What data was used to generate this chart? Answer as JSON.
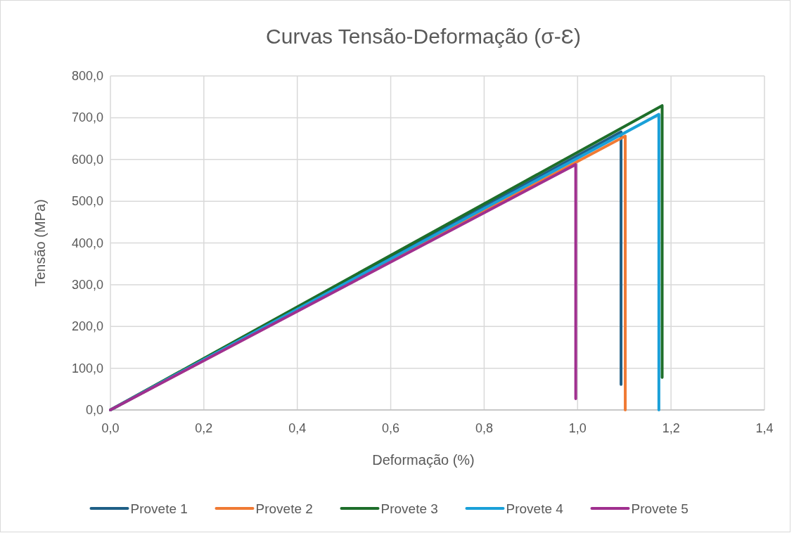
{
  "chart_data": {
    "type": "line",
    "title": "Curvas Tensão-Deformação (σ-Ɛ)",
    "xlabel": "Deformação (%)",
    "ylabel": "Tensão (MPa)",
    "xlim": [
      0,
      1.4
    ],
    "xticks": [
      {
        "value": 0,
        "label": "0,0"
      },
      {
        "value": 0.2,
        "label": "0,2"
      },
      {
        "value": 0.4,
        "label": "0,4"
      },
      {
        "value": 0.6,
        "label": "0,6"
      },
      {
        "value": 0.8,
        "label": "0,8"
      },
      {
        "value": 1,
        "label": "1,0"
      },
      {
        "value": 1.2,
        "label": "1,2"
      },
      {
        "value": 1.4,
        "label": "1,4"
      }
    ],
    "ylim": [
      0,
      800
    ],
    "yticks": [
      {
        "value": 0,
        "label": "0,0"
      },
      {
        "value": 100,
        "label": "100,0"
      },
      {
        "value": 200,
        "label": "200,0"
      },
      {
        "value": 300,
        "label": "300,0"
      },
      {
        "value": 400,
        "label": "400,0"
      },
      {
        "value": 500,
        "label": "500,0"
      },
      {
        "value": 600,
        "label": "600,0"
      },
      {
        "value": 700,
        "label": "700,0"
      },
      {
        "value": 800,
        "label": "800,0"
      }
    ],
    "grid": true,
    "legend": "bottom",
    "marker": "none",
    "line_style": "solid",
    "series": [
      {
        "name": "Provete 1",
        "color": "#1f5f86",
        "x": [
          0,
          1.093,
          1.093
        ],
        "values": [
          0,
          666,
          61
        ]
      },
      {
        "name": "Provete 2",
        "color": "#f07a34",
        "x": [
          0,
          1.102,
          1.102
        ],
        "values": [
          0,
          656,
          0
        ]
      },
      {
        "name": "Provete 3",
        "color": "#1e6e2a",
        "x": [
          0,
          1.181,
          1.181
        ],
        "values": [
          0,
          729,
          78
        ]
      },
      {
        "name": "Provete 4",
        "color": "#1aa0d8",
        "x": [
          0,
          1.174,
          1.174
        ],
        "values": [
          0,
          708,
          0
        ]
      },
      {
        "name": "Provete 5",
        "color": "#a0308f",
        "x": [
          0,
          0.996,
          0.996
        ],
        "values": [
          0,
          588,
          27
        ]
      }
    ]
  }
}
